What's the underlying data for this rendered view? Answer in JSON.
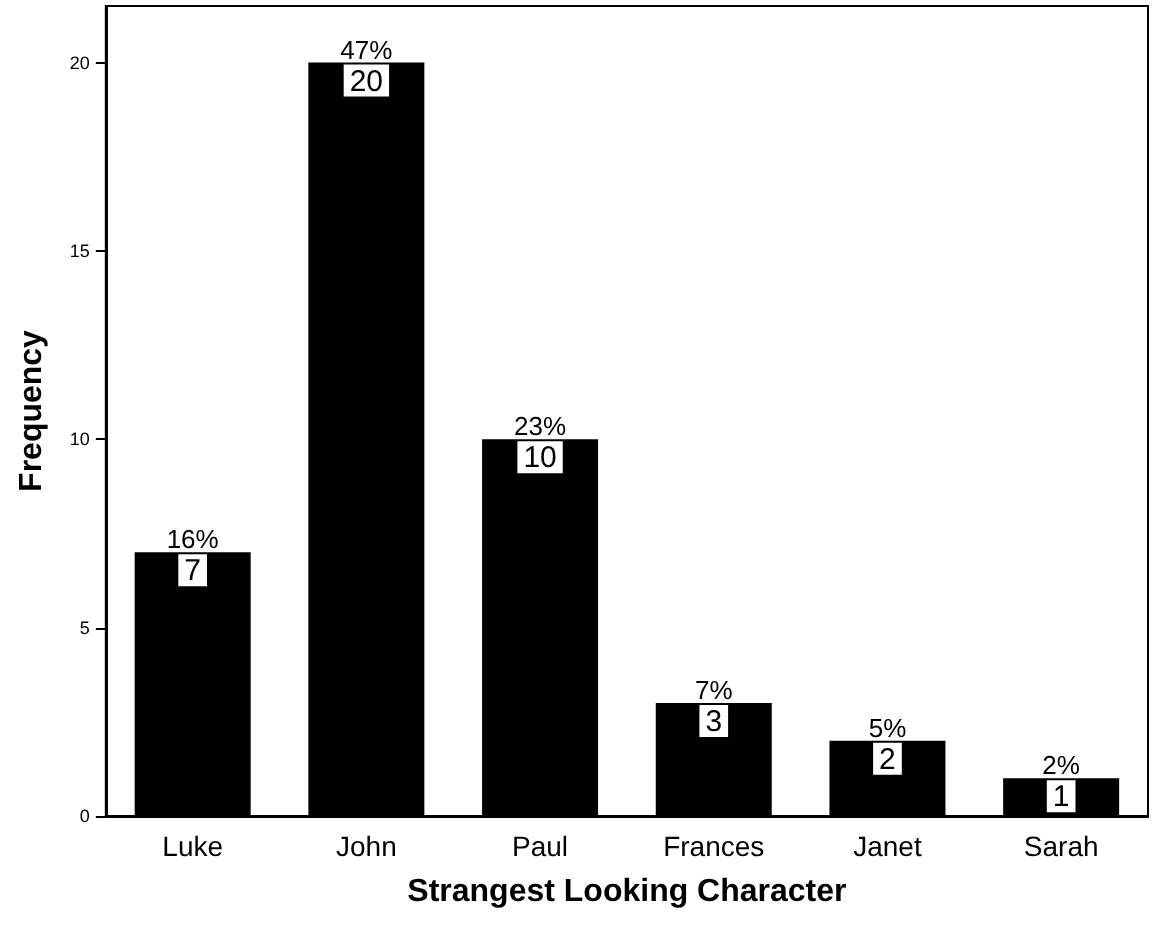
{
  "chart_data": {
    "type": "bar",
    "xlabel": "Strangest Looking Character",
    "ylabel": "Frequency",
    "categories": [
      "Luke",
      "John",
      "Paul",
      "Frances",
      "Janet",
      "Sarah"
    ],
    "values": [
      7,
      20,
      10,
      3,
      2,
      1
    ],
    "annotations": [
      {
        "text": "16%",
        "x": "Luke",
        "y": 7
      },
      {
        "text": "47%",
        "x": "John",
        "y": 20
      },
      {
        "text": "23%",
        "x": "Paul",
        "y": 10
      },
      {
        "text": "7%",
        "x": "Frances",
        "y": 3
      },
      {
        "text": "5%",
        "x": "Janet",
        "y": 2
      },
      {
        "text": "2%",
        "x": "Sarah",
        "y": 1
      }
    ],
    "data_labels": true,
    "color": "#000000",
    "ylim": [
      0,
      21.5
    ],
    "yticks": [
      0,
      5,
      10,
      15,
      20
    ],
    "grid": false
  }
}
